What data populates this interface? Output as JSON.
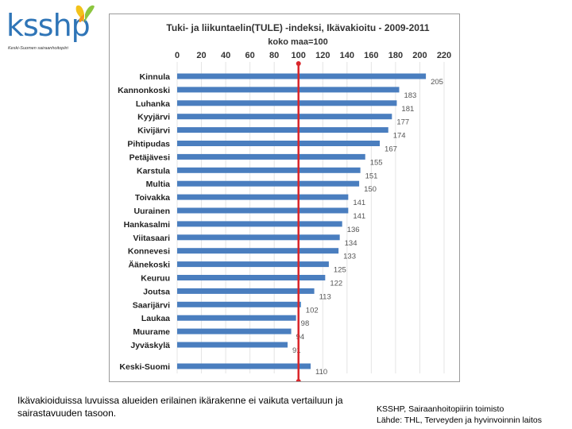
{
  "logo": {
    "name": "ksshp",
    "subtitle": "Keski-Suomen sairaanhoitopiiri"
  },
  "chart_data": {
    "type": "bar",
    "orientation": "horizontal",
    "title": "Tuki- ja liikuntaelin(TULE) -indeksi, Ikävakioitu - 2009-2011",
    "subtitle": "koko maa=100",
    "xlim": [
      0,
      220
    ],
    "xticks": [
      0,
      20,
      40,
      60,
      80,
      100,
      120,
      140,
      160,
      180,
      200,
      220
    ],
    "reference_line": 100,
    "categories": [
      "Kinnula",
      "Kannonkoski",
      "Luhanka",
      "Kyyjärvi",
      "Kivijärvi",
      "Pihtipudas",
      "Petäjävesi",
      "Karstula",
      "Multia",
      "Toivakka",
      "Uurainen",
      "Hankasalmi",
      "Viitasaari",
      "Konnevesi",
      "Äänekoski",
      "Keuruu",
      "Joutsa",
      "Saarijärvi",
      "Laukaa",
      "Muurame",
      "Jyväskylä",
      "Keski-Suomi"
    ],
    "values": [
      205,
      183,
      181,
      177,
      174,
      167,
      155,
      151,
      150,
      141,
      141,
      136,
      134,
      133,
      125,
      122,
      113,
      102,
      98,
      94,
      91,
      110
    ],
    "bar_color": "#4a7ebf",
    "reference_color": "#d9262b"
  },
  "captions": {
    "left": "Ikävakioiduissa luvuissa alueiden erilainen ikärakenne ei vaikuta vertailuun ja sairastavuuden tasoon.",
    "source_org": "KSSHP, Sairaanhoitopiirin toimisto",
    "source_data": "Lähde: THL, Terveyden ja hyvinvoinnin laitos"
  }
}
